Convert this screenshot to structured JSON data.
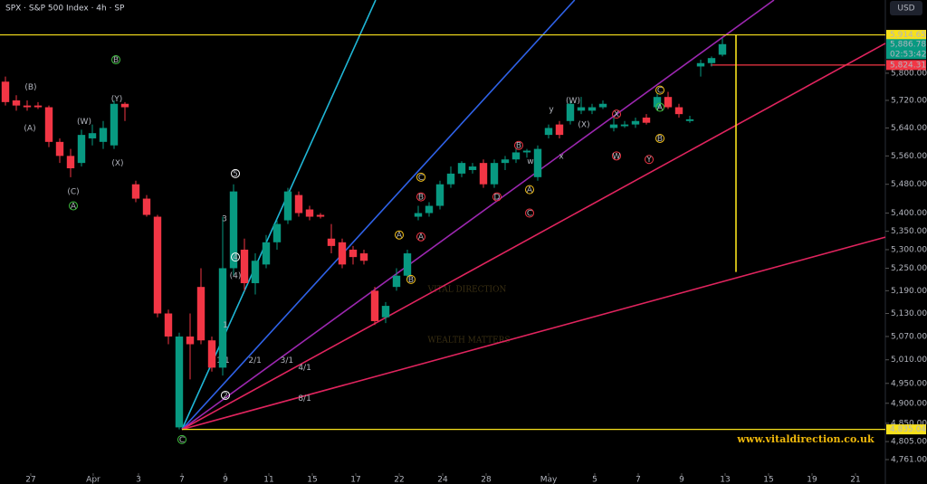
{
  "chart_data": {
    "type": "candlestick",
    "title": "SPX · S&P 500 Index · 4h · SP",
    "currency": "USD",
    "watermark": "VITAL DIRECTION",
    "watermark_subtitle": "WEALTH MATTERS",
    "website": "www.vitaldirection.co.uk",
    "log_scale": true,
    "up_color": "#089981",
    "down_color": "#f23645",
    "open": [
      5775,
      5720,
      5705,
      5705,
      5700,
      5600,
      5560,
      5540,
      5610,
      5600,
      5590,
      5710,
      5480,
      5440,
      5390,
      5130,
      4840,
      5070,
      5200,
      5060,
      4990,
      5250,
      5300,
      5210,
      5260,
      5320,
      5380,
      5450,
      5410,
      5395,
      5330,
      5320,
      5300,
      5290,
      5190,
      5120,
      5200,
      5230,
      5390,
      5400,
      5420,
      5480,
      5510,
      5520,
      5540,
      5480,
      5540,
      5550,
      5570,
      5500,
      5620,
      5650,
      5660,
      5690,
      5690,
      5700,
      5640,
      5645,
      5650,
      5670,
      5700,
      5730,
      5700,
      5660,
      5820,
      5830,
      5855
    ],
    "high": [
      5790,
      5735,
      5720,
      5715,
      5705,
      5610,
      5580,
      5635,
      5650,
      5660,
      5720,
      5715,
      5490,
      5450,
      5395,
      5140,
      5080,
      5130,
      5250,
      5070,
      5390,
      5480,
      5330,
      5290,
      5340,
      5380,
      5470,
      5460,
      5420,
      5400,
      5370,
      5330,
      5310,
      5300,
      5200,
      5160,
      5250,
      5300,
      5420,
      5430,
      5490,
      5530,
      5545,
      5540,
      5550,
      5550,
      5560,
      5580,
      5580,
      5590,
      5650,
      5660,
      5720,
      5730,
      5710,
      5720,
      5670,
      5660,
      5670,
      5680,
      5740,
      5745,
      5710,
      5675,
      5840,
      5850,
      5905
    ],
    "low": [
      5705,
      5690,
      5690,
      5695,
      5585,
      5540,
      5500,
      5530,
      5590,
      5580,
      5580,
      5660,
      5430,
      5390,
      5120,
      5050,
      4835.04,
      4960,
      5050,
      4980,
      4970,
      5230,
      5190,
      5180,
      5250,
      5300,
      5370,
      5390,
      5380,
      5385,
      5290,
      5250,
      5260,
      5260,
      5100,
      5105,
      5190,
      5220,
      5380,
      5390,
      5410,
      5470,
      5500,
      5510,
      5470,
      5470,
      5520,
      5540,
      5555,
      5490,
      5610,
      5610,
      5650,
      5680,
      5680,
      5695,
      5630,
      5640,
      5640,
      5650,
      5690,
      5695,
      5670,
      5655,
      5790,
      5820,
      5850
    ],
    "close": [
      5715,
      5705,
      5700,
      5700,
      5600,
      5560,
      5525,
      5620,
      5625,
      5640,
      5710,
      5700,
      5440,
      5395,
      5130,
      5070,
      5070,
      5050,
      5060,
      4990,
      5250,
      5460,
      5210,
      5270,
      5320,
      5370,
      5460,
      5400,
      5390,
      5390,
      5310,
      5260,
      5280,
      5270,
      5110,
      5150,
      5230,
      5290,
      5400,
      5420,
      5480,
      5510,
      5540,
      5530,
      5480,
      5540,
      5550,
      5570,
      5575,
      5580,
      5640,
      5620,
      5710,
      5700,
      5700,
      5710,
      5650,
      5650,
      5660,
      5655,
      5730,
      5700,
      5680,
      5665,
      5830,
      5845,
      5886.78
    ],
    "xlim": [
      -0.5,
      81
    ],
    "ylim": [
      4702,
      6021
    ],
    "xticks": [
      {
        "value": 2.33,
        "label": "27"
      },
      {
        "value": 8.08,
        "label": "Apr"
      },
      {
        "value": 12.25,
        "label": "3"
      },
      {
        "value": 16.25,
        "label": "7"
      },
      {
        "value": 20.25,
        "label": "9"
      },
      {
        "value": 24.25,
        "label": "11"
      },
      {
        "value": 28.25,
        "label": "15"
      },
      {
        "value": 32.25,
        "label": "17"
      },
      {
        "value": 36.25,
        "label": "22"
      },
      {
        "value": 40.25,
        "label": "24"
      },
      {
        "value": 44.25,
        "label": "28"
      },
      {
        "value": 50,
        "label": "May"
      },
      {
        "value": 54.25,
        "label": "5"
      },
      {
        "value": 58.25,
        "label": "7"
      },
      {
        "value": 62.25,
        "label": "9"
      },
      {
        "value": 66.25,
        "label": "13"
      },
      {
        "value": 70.25,
        "label": "15"
      },
      {
        "value": 74.25,
        "label": "19"
      },
      {
        "value": 78.25,
        "label": "21"
      }
    ],
    "yticks": [
      {
        "value": 5800,
        "label": "5,800.00"
      },
      {
        "value": 5720,
        "label": "5,720.00"
      },
      {
        "value": 5640,
        "label": "5,640.00"
      },
      {
        "value": 5560,
        "label": "5,560.00"
      },
      {
        "value": 5480,
        "label": "5,480.00"
      },
      {
        "value": 5400,
        "label": "5,400.00"
      },
      {
        "value": 5350,
        "label": "5,350.00"
      },
      {
        "value": 5300,
        "label": "5,300.00"
      },
      {
        "value": 5250,
        "label": "5,250.00"
      },
      {
        "value": 5190,
        "label": "5,190.00"
      },
      {
        "value": 5130,
        "label": "5,130.00"
      },
      {
        "value": 5070,
        "label": "5,070.00"
      },
      {
        "value": 5010,
        "label": "5,010.00"
      },
      {
        "value": 4950,
        "label": "4,950.00"
      },
      {
        "value": 4900,
        "label": "4,900.00"
      },
      {
        "value": 4850,
        "label": "4,850.00"
      },
      {
        "value": 4805,
        "label": "4,805.00"
      },
      {
        "value": 4761,
        "label": "4,761.00"
      }
    ],
    "price_labels": [
      {
        "value": 5914.65,
        "label": "5,914.65",
        "color": "#f7e11c",
        "line_from": -0.5
      },
      {
        "value": 5886.78,
        "label": "5,886.78",
        "color": "#089981",
        "countdown": "02:53:42"
      },
      {
        "value": 5824.31,
        "label": "5,824.31",
        "color": "#f23645",
        "line_from": 64.9
      },
      {
        "value": 4835.04,
        "label": "4,835.04",
        "color": "#f7e11c",
        "line_from": 16.25
      }
    ],
    "vline": {
      "x": 67.25,
      "y_end": 5240,
      "color": "#f7e11c"
    },
    "fan": {
      "x": 16.25,
      "y": 4835.04,
      "lines": [
        {
          "name": "1/1",
          "color": "#1fb6d6",
          "x2": 34.08,
          "y2": 6021
        },
        {
          "name": "2/1",
          "color": "#2f62e8",
          "x2": 52.4,
          "y2": 6021
        },
        {
          "name": "3/1",
          "color": "#9c27b0",
          "x2": 70.75,
          "y2": 6021
        },
        {
          "name": "4/1",
          "color": "#e0245e",
          "x2": 81,
          "y2": 5889
        },
        {
          "name": "8/1",
          "color": "#e0245e",
          "x2": 81,
          "y2": 5334
        }
      ]
    },
    "annotations": [
      {
        "text": "(B)",
        "x": 2.33,
        "y": 5760,
        "color": "#f7931a"
      },
      {
        "text": "(A)",
        "x": 2.25,
        "y": 5640,
        "color": "#f7931a"
      },
      {
        "text": "(C)",
        "x": 6.25,
        "y": 5460,
        "color": "#f7931a"
      },
      {
        "text": "A",
        "x": 6.25,
        "y": 5420,
        "color": "#3fbf3f",
        "circled": true
      },
      {
        "text": "B",
        "x": 10.17,
        "y": 5840,
        "color": "#3fbf3f",
        "circled": true
      },
      {
        "text": "(W)",
        "x": 7.25,
        "y": 5660,
        "color": "#f7931a"
      },
      {
        "text": "(Y)",
        "x": 10.25,
        "y": 5725,
        "color": "#f7931a"
      },
      {
        "text": "(X)",
        "x": 10.33,
        "y": 5540,
        "color": "#f7931a"
      },
      {
        "text": "C",
        "x": 16.25,
        "y": 4810,
        "color": "#3fbf3f",
        "circled": true
      },
      {
        "text": "5",
        "x": 21.17,
        "y": 5510,
        "color": "#ffffff",
        "circled": true
      },
      {
        "text": "3",
        "x": 20.17,
        "y": 5385,
        "color": "#f7c31a"
      },
      {
        "text": "4",
        "x": 21.17,
        "y": 5280,
        "color": "#ffffff",
        "circled": true
      },
      {
        "text": "(4)",
        "x": 21.17,
        "y": 5230,
        "color": "#f7c31a"
      },
      {
        "text": "1",
        "x": 20.25,
        "y": 5100,
        "color": "#3fbf3f"
      },
      {
        "text": "2",
        "x": 20.25,
        "y": 4920,
        "color": "#ffffff",
        "circled": true
      },
      {
        "text": "C",
        "x": 38.25,
        "y": 5500,
        "color": "#f7c31a",
        "circled": true
      },
      {
        "text": "B",
        "x": 38.25,
        "y": 5445,
        "color": "#f23645",
        "circled": true
      },
      {
        "text": "A",
        "x": 36.25,
        "y": 5340,
        "color": "#f7c31a",
        "circled": true
      },
      {
        "text": "A",
        "x": 38.25,
        "y": 5335,
        "color": "#f23645",
        "circled": true
      },
      {
        "text": "B",
        "x": 37.33,
        "y": 5220,
        "color": "#f7c31a",
        "circled": true
      },
      {
        "text": "B",
        "x": 47.25,
        "y": 5590,
        "color": "#f23645",
        "circled": true
      },
      {
        "text": "D",
        "x": 45.25,
        "y": 5445,
        "color": "#f23645",
        "circled": true
      },
      {
        "text": "C",
        "x": 48.25,
        "y": 5400,
        "color": "#f23645",
        "circled": true
      },
      {
        "text": "A",
        "x": 48.25,
        "y": 5465,
        "color": "#f7c31a",
        "circled": true
      },
      {
        "text": "w",
        "x": 48.33,
        "y": 5545,
        "color": "#3fbf3f"
      },
      {
        "text": "y",
        "x": 50.25,
        "y": 5695,
        "color": "#3fbf3f"
      },
      {
        "text": "x",
        "x": 51.17,
        "y": 5560,
        "color": "#3fbf3f"
      },
      {
        "text": "(W)",
        "x": 52.25,
        "y": 5720,
        "color": "#26c6da"
      },
      {
        "text": "(X)",
        "x": 53.25,
        "y": 5650,
        "color": "#26c6da"
      },
      {
        "text": "X",
        "x": 56.25,
        "y": 5680,
        "color": "#f23645",
        "circled": true
      },
      {
        "text": "W",
        "x": 56.25,
        "y": 5560,
        "color": "#f23645",
        "circled": true
      },
      {
        "text": "Y",
        "x": 59.25,
        "y": 5550,
        "color": "#f23645",
        "circled": true
      },
      {
        "text": "C",
        "x": 60.25,
        "y": 5750,
        "color": "#f7c31a",
        "circled": true
      },
      {
        "text": "A",
        "x": 60.25,
        "y": 5700,
        "color": "#3fbf3f",
        "circled": true
      },
      {
        "text": "B",
        "x": 60.25,
        "y": 5610,
        "color": "#f7c31a",
        "circled": true
      }
    ]
  }
}
